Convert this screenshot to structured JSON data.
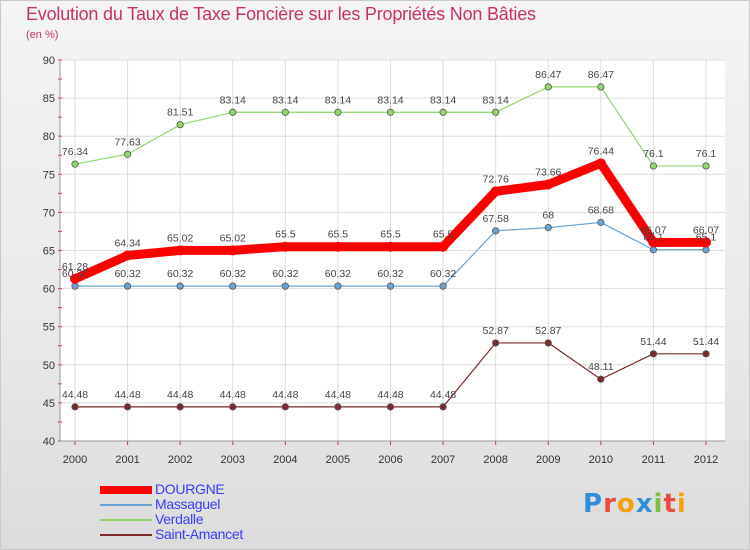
{
  "chart_data": {
    "type": "line",
    "title": "Evolution du Taux de Taxe Foncière sur les Propriétés Non Bâties",
    "subtitle": "(en %)",
    "x": [
      "2000",
      "2001",
      "2002",
      "2003",
      "2004",
      "2005",
      "2006",
      "2007",
      "2008",
      "2009",
      "2010",
      "2011",
      "2012"
    ],
    "ylim": [
      40,
      90
    ],
    "yticks": [
      "40",
      "45",
      "50",
      "55",
      "60",
      "65",
      "70",
      "75",
      "80",
      "85",
      "90"
    ],
    "grid": true,
    "legend_position": "bottom-left",
    "series": [
      {
        "name": "DOURGNE",
        "color": "#ff0000",
        "emphasis": true,
        "values": [
          61.28,
          64.34,
          65.02,
          65.02,
          65.5,
          65.5,
          65.5,
          65.5,
          72.76,
          73.66,
          76.44,
          66.07,
          66.07
        ],
        "labels": [
          "61.28",
          "64.34",
          "65.02",
          "65.02",
          "65.5",
          "65.5",
          "65.5",
          "65.5",
          "72.76",
          "73.66",
          "76.44",
          "66.07",
          "66.07"
        ]
      },
      {
        "name": "Massaguel",
        "color": "#6aa3d5",
        "values": [
          60.32,
          60.32,
          60.32,
          60.32,
          60.32,
          60.32,
          60.32,
          60.32,
          67.58,
          68,
          68.68,
          65.1,
          65.1
        ],
        "labels": [
          "60.32",
          "60.32",
          "60.32",
          "60.32",
          "60.32",
          "60.32",
          "60.32",
          "60.32",
          "67.58",
          "68",
          "68.68",
          "65.1",
          "65.1"
        ]
      },
      {
        "name": "Verdalle",
        "color": "#8fd66b",
        "values": [
          76.34,
          77.63,
          81.51,
          83.14,
          83.14,
          83.14,
          83.14,
          83.14,
          83.14,
          86.47,
          86.47,
          76.1,
          76.1
        ],
        "labels": [
          "76.34",
          "77.63",
          "81.51",
          "83.14",
          "83.14",
          "83.14",
          "83.14",
          "83.14",
          "83.14",
          "86.47",
          "86.47",
          "76.1",
          "76.1"
        ]
      },
      {
        "name": "Saint-Amancet",
        "color": "#7a2a2a",
        "values": [
          44.48,
          44.48,
          44.48,
          44.48,
          44.48,
          44.48,
          44.48,
          44.48,
          52.87,
          52.87,
          48.11,
          51.44,
          51.44
        ],
        "labels": [
          "44.48",
          "44.48",
          "44.48",
          "44.48",
          "44.48",
          "44.48",
          "44.48",
          "44.48",
          "52.87",
          "52.87",
          "48.11",
          "51.44",
          "51.44"
        ]
      }
    ]
  },
  "brand": {
    "letters": [
      "P",
      "r",
      "o",
      "x",
      "i",
      "t",
      "i"
    ],
    "colors": [
      "#2f8fd8",
      "#e84c3d",
      "#f2a20c",
      "#2f8fd8",
      "#7cc242",
      "#e84c3d",
      "#f2a20c"
    ]
  }
}
